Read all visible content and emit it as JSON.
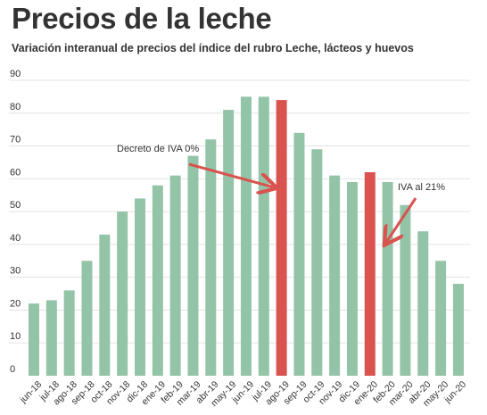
{
  "header": {
    "title": "Precios de la leche",
    "subtitle": "Variación interanual de precios del índice del rubro Leche, lácteos y huevos"
  },
  "colors": {
    "bar": "#93c4a8",
    "highlight": "#d9534f",
    "grid": "#e3e3e3",
    "arrow": "#d9534f"
  },
  "chart_data": {
    "type": "bar",
    "title": "Precios de la leche",
    "subtitle": "Variación interanual de precios del índice del rubro Leche, lácteos y huevos",
    "xlabel": "",
    "ylabel": "",
    "ylim": [
      0,
      90
    ],
    "yticks": [
      0,
      10,
      20,
      30,
      40,
      50,
      60,
      70,
      80,
      90
    ],
    "grid": true,
    "categories": [
      "jun-18",
      "jul-18",
      "ago-18",
      "sep-18",
      "oct-18",
      "nov-18",
      "dic-18",
      "ene-19",
      "feb-19",
      "mar-19",
      "abr-19",
      "may-19",
      "jun-19",
      "jul-19",
      "ago-19",
      "sep-19",
      "oct-19",
      "nov-19",
      "dic-19",
      "ene-20",
      "feb-20",
      "mar-20",
      "abr-20",
      "may-20",
      "jun-20"
    ],
    "values": [
      22,
      23,
      26,
      35,
      43,
      50,
      54,
      58,
      61,
      67,
      72,
      81,
      85,
      85,
      84,
      74,
      69,
      61,
      59,
      62,
      59,
      52,
      44,
      35,
      28
    ],
    "highlighted": [
      "ago-19",
      "ene-20"
    ],
    "annotations": [
      {
        "text": "Decreto de IVA 0%",
        "target": "ago-19",
        "target_value": 59
      },
      {
        "text": "IVA al 21%",
        "target": "feb-20",
        "target_value": 41
      }
    ]
  }
}
